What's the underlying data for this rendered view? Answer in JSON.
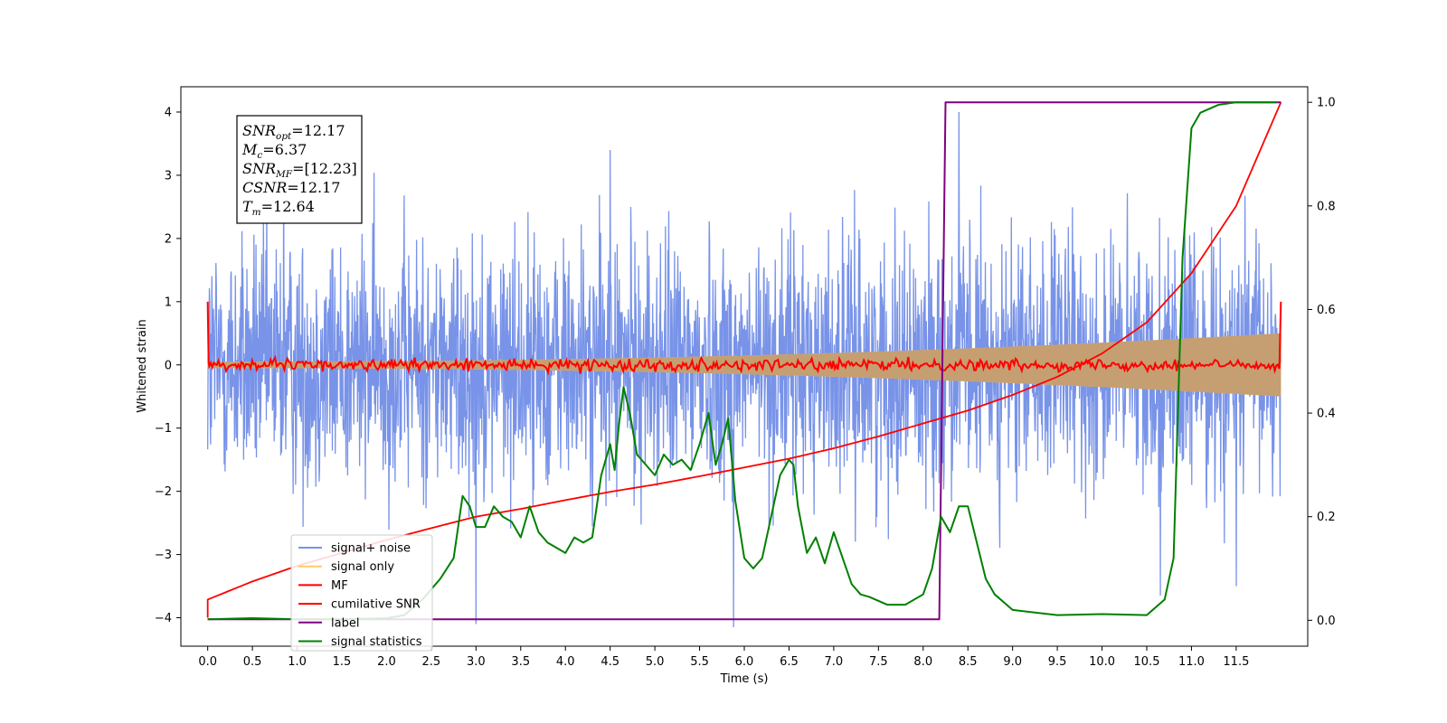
{
  "chart_data": {
    "type": "line",
    "xlabel": "Time (s)",
    "ylabel": "Whitened strain",
    "xlim": [
      -0.3,
      12.3
    ],
    "ylim": [
      -4.45,
      4.4
    ],
    "ylim_right": [
      -0.05,
      1.03
    ],
    "x_ticks": [
      "0.0",
      "0.5",
      "1.0",
      "1.5",
      "2.0",
      "2.5",
      "3.0",
      "3.5",
      "4.0",
      "4.5",
      "5.0",
      "5.5",
      "6.0",
      "6.5",
      "7.0",
      "7.5",
      "8.0",
      "8.5",
      "9.0",
      "9.5",
      "10.0",
      "10.5",
      "11.0",
      "11.5"
    ],
    "y_ticks": [
      "−4",
      "−3",
      "−2",
      "−1",
      "0",
      "1",
      "2",
      "3",
      "4"
    ],
    "y_ticks_right": [
      "0.0",
      "0.2",
      "0.4",
      "0.6",
      "0.8",
      "1.0"
    ],
    "annotation": {
      "lines": [
        {
          "main": "SNR",
          "sub": "opt",
          "value": "=12.17"
        },
        {
          "main": "M",
          "sub": "c",
          "value": "=6.37"
        },
        {
          "main": "SNR",
          "sub": "MF",
          "value": "=[12.23]"
        },
        {
          "main": "CSNR",
          "sub": "",
          "value": "=12.17"
        },
        {
          "main": "T",
          "sub": "m",
          "value": "=12.64"
        }
      ]
    },
    "legend": {
      "placement": "lower-left",
      "entries": [
        {
          "label": "signal+ noise",
          "color": "#7893e8"
        },
        {
          "label": "signal only",
          "color": "#ffc966"
        },
        {
          "label": "MF",
          "color": "#ff0000"
        },
        {
          "label": "cumilative SNR",
          "color": "#ff0000"
        },
        {
          "label": "label",
          "color": "#800080"
        },
        {
          "label": "signal statistics",
          "color": "#008000"
        }
      ]
    },
    "series": [
      {
        "name": "signal+ noise",
        "axis": "left",
        "color": "#7893e8",
        "kind": "noise",
        "x_range": [
          0,
          12
        ],
        "sigma": 1.0,
        "notable_spikes": [
          [
            0.85,
            3.35
          ],
          [
            3.0,
            -4.1
          ],
          [
            4.5,
            3.4
          ],
          [
            5.88,
            -4.15
          ],
          [
            8.4,
            4.0
          ],
          [
            10.65,
            -3.65
          ],
          [
            11.5,
            -3.5
          ]
        ]
      },
      {
        "name": "signal only",
        "axis": "left",
        "color": "#ffc966",
        "kind": "chirp-envelope",
        "x_range": [
          0,
          12
        ],
        "amplitude_start": 0.05,
        "amplitude_end": 0.5
      },
      {
        "name": "MF",
        "axis": "left",
        "color": "#ff0000",
        "kind": "jitter",
        "x_range": [
          0,
          12
        ],
        "amplitude": 0.06,
        "edge_values": [
          1.0,
          1.0
        ]
      },
      {
        "name": "cumilative SNR",
        "axis": "right",
        "color": "#ff0000",
        "x": [
          0,
          0.5,
          1.0,
          1.5,
          2.0,
          2.5,
          3.0,
          3.5,
          4.0,
          4.5,
          5.0,
          5.5,
          6.0,
          6.5,
          7.0,
          7.5,
          8.0,
          8.5,
          9.0,
          9.5,
          10.0,
          10.5,
          11.0,
          11.5,
          12.0
        ],
        "values": [
          0.04,
          0.075,
          0.105,
          0.13,
          0.155,
          0.178,
          0.2,
          0.215,
          0.232,
          0.248,
          0.262,
          0.278,
          0.295,
          0.312,
          0.332,
          0.355,
          0.38,
          0.405,
          0.435,
          0.47,
          0.515,
          0.575,
          0.67,
          0.8,
          1.0
        ]
      },
      {
        "name": "label",
        "axis": "right",
        "color": "#800080",
        "x": [
          0,
          8.18,
          8.25,
          12.0
        ],
        "values": [
          0.002,
          0.002,
          1.0,
          1.0
        ]
      },
      {
        "name": "signal statistics",
        "axis": "right",
        "color": "#008000",
        "x": [
          0,
          0.5,
          1.0,
          1.5,
          2.0,
          2.2,
          2.4,
          2.6,
          2.75,
          2.85,
          2.93,
          3.0,
          3.1,
          3.2,
          3.3,
          3.4,
          3.5,
          3.6,
          3.7,
          3.8,
          3.9,
          4.0,
          4.1,
          4.2,
          4.3,
          4.4,
          4.5,
          4.55,
          4.6,
          4.65,
          4.72,
          4.8,
          4.9,
          5.0,
          5.1,
          5.2,
          5.3,
          5.4,
          5.5,
          5.6,
          5.68,
          5.75,
          5.82,
          5.9,
          6.0,
          6.1,
          6.2,
          6.3,
          6.4,
          6.5,
          6.55,
          6.6,
          6.7,
          6.8,
          6.9,
          7.0,
          7.1,
          7.2,
          7.3,
          7.4,
          7.6,
          7.8,
          8.0,
          8.1,
          8.2,
          8.3,
          8.4,
          8.5,
          8.6,
          8.7,
          8.8,
          9.0,
          9.5,
          10.0,
          10.5,
          10.7,
          10.8,
          10.9,
          11.0,
          11.1,
          11.3,
          11.5,
          11.95
        ],
        "values": [
          0.002,
          0.004,
          0.002,
          0.002,
          0.004,
          0.01,
          0.04,
          0.08,
          0.12,
          0.24,
          0.22,
          0.18,
          0.18,
          0.22,
          0.2,
          0.19,
          0.16,
          0.22,
          0.17,
          0.15,
          0.14,
          0.13,
          0.16,
          0.15,
          0.16,
          0.28,
          0.34,
          0.29,
          0.38,
          0.45,
          0.4,
          0.32,
          0.3,
          0.28,
          0.32,
          0.3,
          0.31,
          0.29,
          0.34,
          0.4,
          0.3,
          0.34,
          0.39,
          0.23,
          0.12,
          0.1,
          0.12,
          0.2,
          0.28,
          0.31,
          0.3,
          0.22,
          0.13,
          0.16,
          0.11,
          0.17,
          0.12,
          0.07,
          0.05,
          0.045,
          0.03,
          0.03,
          0.05,
          0.1,
          0.2,
          0.17,
          0.22,
          0.22,
          0.15,
          0.08,
          0.05,
          0.02,
          0.01,
          0.012,
          0.01,
          0.04,
          0.12,
          0.7,
          0.95,
          0.98,
          0.995,
          1.0,
          1.0
        ]
      }
    ]
  }
}
